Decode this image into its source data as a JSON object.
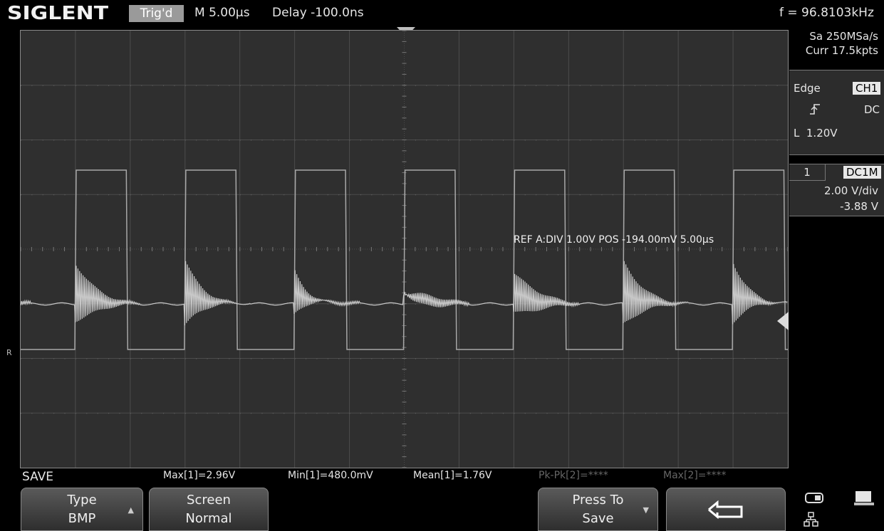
{
  "header": {
    "brand": "SIGLENT",
    "trigger_status": "Trig'd",
    "timebase": "M 5.00µs",
    "delay": "Delay -100.0ns",
    "frequency": "f = 96.8103kHz"
  },
  "acquisition": {
    "sample_rate": "Sa 250MSa/s",
    "memory": "Curr 17.5kpts"
  },
  "trigger_panel": {
    "type": "Edge",
    "source": "CH1",
    "slope_icon": "rising-edge-icon",
    "coupling": "DC",
    "level": "L  1.20V"
  },
  "channel_panel": {
    "number": "1",
    "coupling": "DC1M",
    "scale": "2.00 V/div",
    "offset": "-3.88 V"
  },
  "reference": {
    "label": "REF A:DIV 1.00V  POS -194.00mV 5.00µs"
  },
  "side_marker": "R",
  "menu_title": "SAVE",
  "measurements": [
    {
      "text": "Max[1]=2.96V",
      "active": true
    },
    {
      "text": "Min[1]=480.0mV",
      "active": true
    },
    {
      "text": "Mean[1]=1.76V",
      "active": true
    },
    {
      "text": "Pk-Pk[2]=****",
      "active": false
    },
    {
      "text": "Max[2]=****",
      "active": false
    }
  ],
  "softkeys": {
    "type": {
      "title": "Type",
      "value": "BMP"
    },
    "screen": {
      "title": "Screen",
      "value": "Normal"
    },
    "save": {
      "title": "Press To",
      "value": "Save"
    }
  },
  "status_icons": [
    "storage-icon",
    "monitor-icon",
    "network-icon"
  ],
  "colors": {
    "background": "#000000",
    "grid_bg": "#2f2f2f",
    "grid_line": "#4c4c4c",
    "trace": "#c8c8c8",
    "ref_trace": "#a8a8a8",
    "trigger_badge": "#9a9a9a"
  }
}
